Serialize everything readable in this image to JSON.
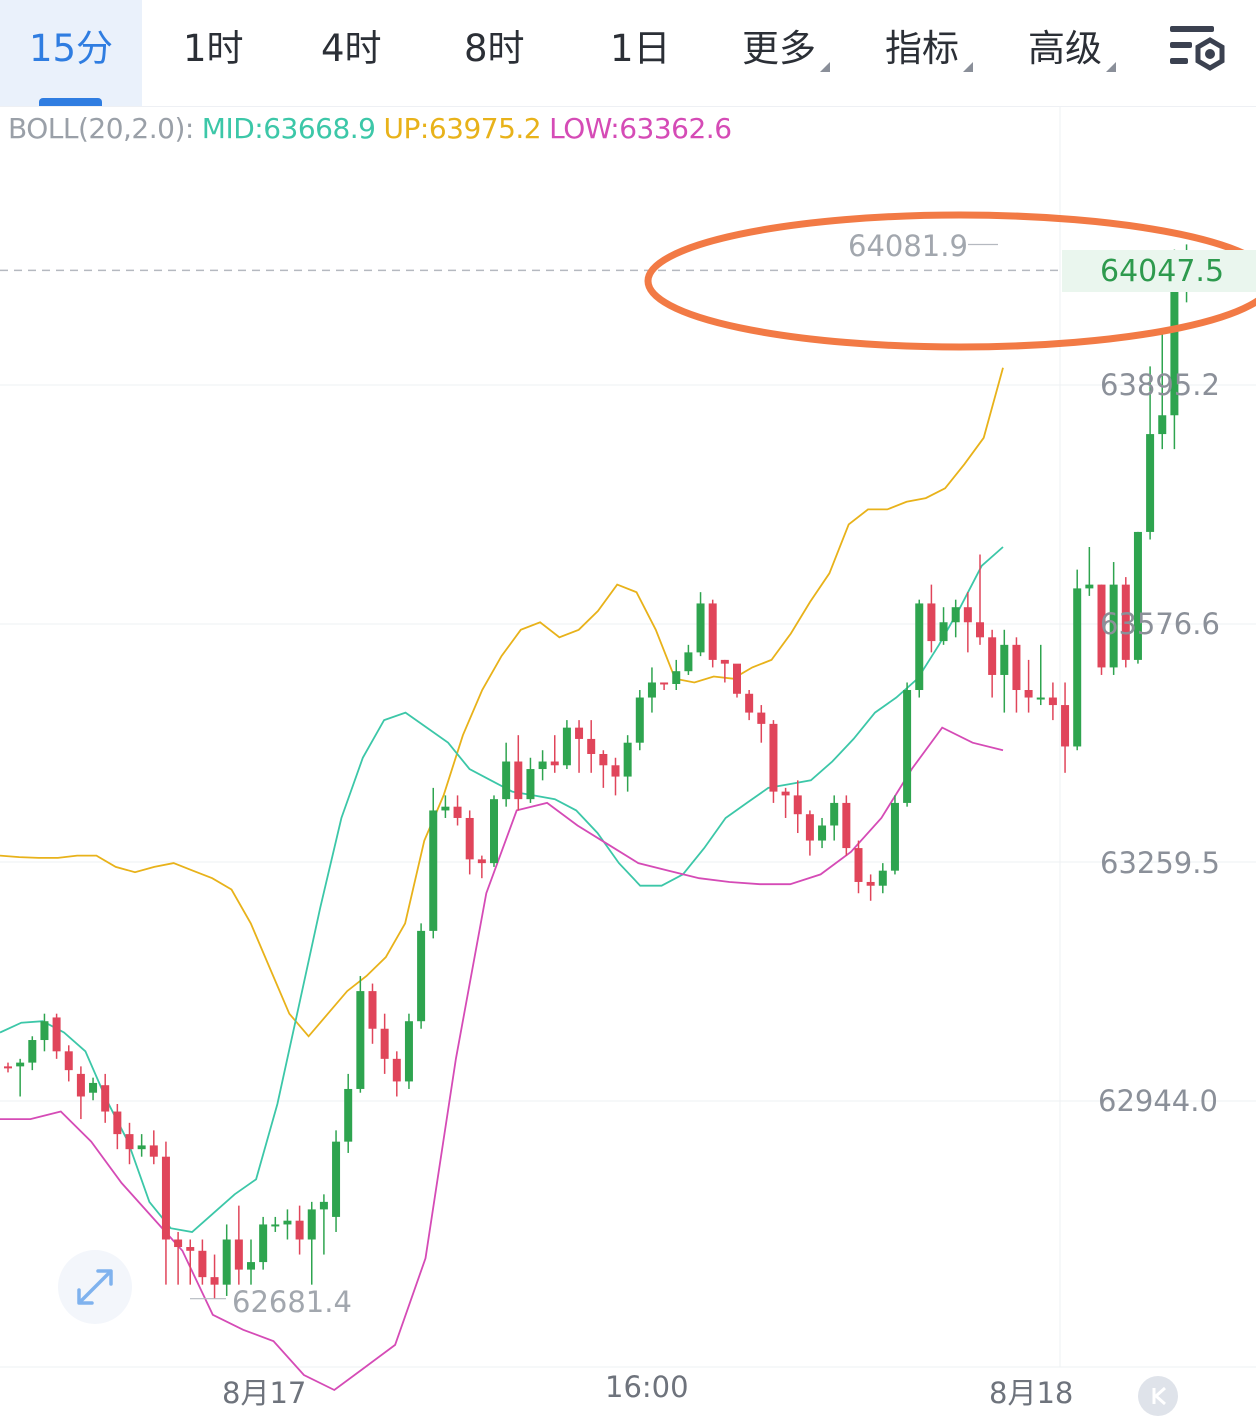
{
  "tabs": [
    {
      "label": "15分",
      "active": true
    },
    {
      "label": "1时"
    },
    {
      "label": "4时"
    },
    {
      "label": "8时"
    },
    {
      "label": "1日"
    },
    {
      "label": "更多",
      "dropdown": true
    },
    {
      "label": "指标",
      "dropdown": true
    },
    {
      "label": "高级",
      "dropdown": true
    }
  ],
  "settings_icon": "chart-settings-icon",
  "indicator": {
    "name": "BOLL(20,2.0):",
    "mid": "MID:63668.9",
    "up": "UP:63975.2",
    "low": "LOW:63362.6"
  },
  "colors": {
    "up_candle": "#2ea44f",
    "down_candle": "#e0455a",
    "mid_line": "#3cc7a8",
    "up_line": "#e8b21a",
    "low_line": "#d54bb6",
    "active_tab": "#2f7de1",
    "highlight_ellipse": "#f27a45"
  },
  "price_axis": [
    "63895.2",
    "63576.6",
    "63259.5",
    "62944.0"
  ],
  "time_axis": [
    "8月17",
    "16:00",
    "8月18"
  ],
  "last_price": "64047.5",
  "high_marker": "64081.9",
  "low_marker": "62681.4",
  "chart_data": {
    "type": "candlestick",
    "interval": "15分",
    "ylim": [
      62560,
      64250
    ],
    "x_ticks": [
      "8月17",
      "16:00",
      "8月18"
    ],
    "y_ticks": [
      63895.2,
      63576.6,
      63259.5,
      62944.0
    ],
    "last_price": 64047.5,
    "max_price": 64081.9,
    "min_price": 62681.4,
    "candles": [
      [
        62990,
        62995,
        62982,
        62988
      ],
      [
        62990,
        63000,
        62950,
        62995
      ],
      [
        62995,
        63030,
        62985,
        63025
      ],
      [
        63025,
        63060,
        63010,
        63050
      ],
      [
        63055,
        63060,
        63000,
        63010
      ],
      [
        63010,
        63018,
        62970,
        62985
      ],
      [
        62980,
        62990,
        62920,
        62950
      ],
      [
        62955,
        62975,
        62945,
        62968
      ],
      [
        62965,
        62980,
        62915,
        62930
      ],
      [
        62930,
        62940,
        62880,
        62900
      ],
      [
        62900,
        62915,
        62860,
        62880
      ],
      [
        62880,
        62900,
        62870,
        62885
      ],
      [
        62885,
        62905,
        62860,
        62870
      ],
      [
        62870,
        62890,
        62700,
        62760
      ],
      [
        62760,
        62770,
        62700,
        62750
      ],
      [
        62750,
        62760,
        62700,
        62745
      ],
      [
        62745,
        62760,
        62700,
        62710
      ],
      [
        62710,
        62740,
        62681,
        62700
      ],
      [
        62700,
        62780,
        62685,
        62760
      ],
      [
        62760,
        62805,
        62700,
        62720
      ],
      [
        62720,
        62760,
        62700,
        62730
      ],
      [
        62730,
        62790,
        62720,
        62780
      ],
      [
        62780,
        62790,
        62770,
        62780
      ],
      [
        62780,
        62800,
        62760,
        62785
      ],
      [
        62785,
        62805,
        62740,
        62760
      ],
      [
        62760,
        62810,
        62700,
        62800
      ],
      [
        62800,
        62820,
        62740,
        62810
      ],
      [
        62790,
        62905,
        62770,
        62890
      ],
      [
        62890,
        62980,
        62875,
        62960
      ],
      [
        62960,
        63110,
        62955,
        63090
      ],
      [
        63090,
        63100,
        63020,
        63040
      ],
      [
        63040,
        63060,
        62980,
        63000
      ],
      [
        63000,
        63010,
        62950,
        62970
      ],
      [
        62970,
        63060,
        62960,
        63050
      ],
      [
        63050,
        63180,
        63040,
        63170
      ],
      [
        63170,
        63360,
        63160,
        63330
      ],
      [
        63330,
        63350,
        63320,
        63335
      ],
      [
        63335,
        63350,
        63310,
        63320
      ],
      [
        63320,
        63330,
        63245,
        63265
      ],
      [
        63265,
        63270,
        63240,
        63260
      ],
      [
        63260,
        63350,
        63255,
        63345
      ],
      [
        63345,
        63420,
        63335,
        63395
      ],
      [
        63395,
        63430,
        63330,
        63345
      ],
      [
        63345,
        63400,
        63340,
        63385
      ],
      [
        63385,
        63410,
        63370,
        63395
      ],
      [
        63395,
        63430,
        63380,
        63390
      ],
      [
        63390,
        63450,
        63385,
        63440
      ],
      [
        63440,
        63450,
        63380,
        63425
      ],
      [
        63425,
        63450,
        63380,
        63405
      ],
      [
        63405,
        63410,
        63360,
        63390
      ],
      [
        63390,
        63400,
        63350,
        63375
      ],
      [
        63375,
        63430,
        63355,
        63420
      ],
      [
        63420,
        63490,
        63410,
        63480
      ],
      [
        63480,
        63520,
        63460,
        63500
      ],
      [
        63500,
        63500,
        63490,
        63498
      ],
      [
        63498,
        63530,
        63490,
        63515
      ],
      [
        63515,
        63550,
        63510,
        63540
      ],
      [
        63540,
        63620,
        63535,
        63605
      ],
      [
        63605,
        63610,
        63520,
        63530
      ],
      [
        63530,
        63530,
        63500,
        63525
      ],
      [
        63525,
        63520,
        63480,
        63485
      ],
      [
        63485,
        63490,
        63450,
        63460
      ],
      [
        63460,
        63470,
        63420,
        63445
      ],
      [
        63445,
        63450,
        63340,
        63355
      ],
      [
        63355,
        63360,
        63320,
        63350
      ],
      [
        63350,
        63370,
        63300,
        63325
      ],
      [
        63325,
        63330,
        63270,
        63290
      ],
      [
        63290,
        63320,
        63280,
        63310
      ],
      [
        63310,
        63350,
        63290,
        63340
      ],
      [
        63340,
        63350,
        63270,
        63280
      ],
      [
        63280,
        63290,
        63220,
        63235
      ],
      [
        63235,
        63245,
        63210,
        63230
      ],
      [
        63230,
        63260,
        63220,
        63250
      ],
      [
        63250,
        63350,
        63245,
        63340
      ],
      [
        63340,
        63500,
        63335,
        63490
      ],
      [
        63490,
        63610,
        63480,
        63605
      ],
      [
        63605,
        63630,
        63540,
        63555
      ],
      [
        63555,
        63600,
        63550,
        63580
      ],
      [
        63580,
        63610,
        63560,
        63600
      ],
      [
        63600,
        63620,
        63540,
        63580
      ],
      [
        63580,
        63670,
        63550,
        63560
      ],
      [
        63560,
        63570,
        63480,
        63510
      ],
      [
        63510,
        63570,
        63460,
        63550
      ],
      [
        63550,
        63560,
        63460,
        63490
      ],
      [
        63490,
        63530,
        63460,
        63480
      ],
      [
        63480,
        63550,
        63470,
        63480
      ],
      [
        63480,
        63500,
        63450,
        63470
      ],
      [
        63470,
        63500,
        63380,
        63415
      ],
      [
        63415,
        63650,
        63410,
        63625
      ],
      [
        63625,
        63680,
        63615,
        63630
      ],
      [
        63630,
        63630,
        63510,
        63520
      ],
      [
        63520,
        63660,
        63510,
        63630
      ],
      [
        63630,
        63640,
        63520,
        63530
      ],
      [
        63530,
        63700,
        63525,
        63700
      ],
      [
        63700,
        63920,
        63690,
        63830
      ],
      [
        63830,
        63970,
        63810,
        63855
      ],
      [
        63855,
        64075,
        63810,
        64020
      ],
      [
        64020,
        64082,
        64005,
        64047
      ]
    ],
    "boll": {
      "up": [
        63270,
        63268,
        63267,
        63267,
        63270,
        63270,
        63255,
        63248,
        63255,
        63260,
        63250,
        63240,
        63225,
        63180,
        63120,
        63060,
        63030,
        63060,
        63090,
        63110,
        63135,
        63180,
        63290,
        63350,
        63430,
        63490,
        63535,
        63570,
        63580,
        63560,
        63570,
        63595,
        63630,
        63620,
        63570,
        63505,
        63500,
        63508,
        63505,
        63520,
        63530,
        63565,
        63607,
        63645,
        63710,
        63730,
        63730,
        63740,
        63745,
        63758,
        63790,
        63825,
        63918
      ],
      "mid": [
        63035,
        63048,
        63050,
        63035,
        63010,
        62945,
        62890,
        62810,
        62775,
        62770,
        62795,
        62820,
        62840,
        62940,
        63070,
        63200,
        63320,
        63400,
        63450,
        63460,
        63440,
        63420,
        63385,
        63370,
        63355,
        63350,
        63345,
        63330,
        63300,
        63260,
        63230,
        63230,
        63245,
        63280,
        63320,
        63340,
        63360,
        63365,
        63370,
        63395,
        63425,
        63460,
        63480,
        63505,
        63550,
        63600,
        63655,
        63680
      ],
      "low": [
        62920,
        62920,
        62930,
        62890,
        62835,
        62790,
        62745,
        62660,
        62640,
        62625,
        62580,
        62560,
        62590,
        62620,
        62735,
        63000,
        63220,
        63330,
        63340,
        63310,
        63285,
        63260,
        63250,
        63240,
        63235,
        63232,
        63232,
        63245,
        63275,
        63320,
        63385,
        63440,
        63420,
        63410
      ]
    }
  }
}
